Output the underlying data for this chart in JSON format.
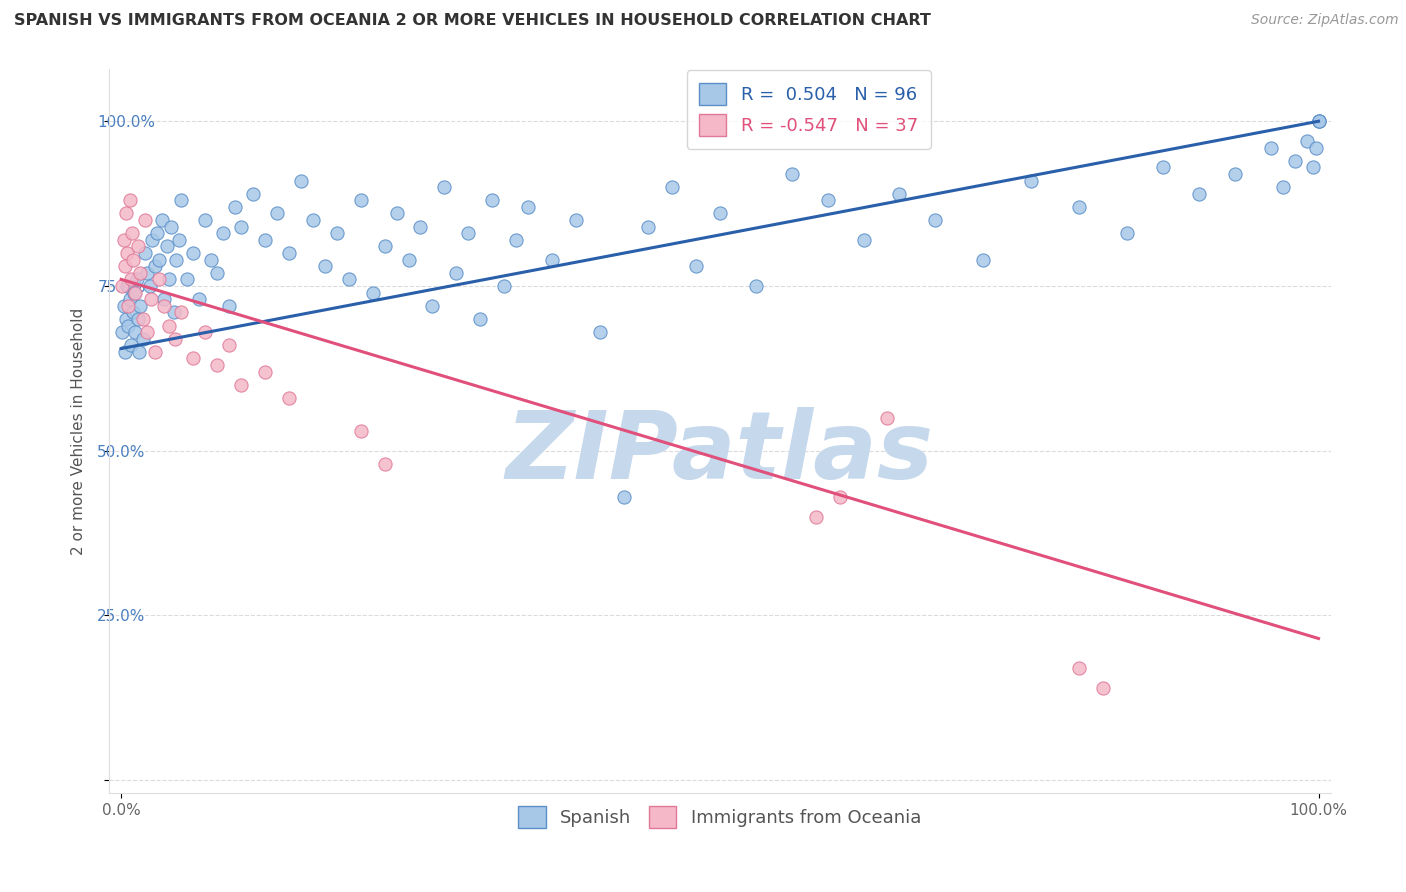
{
  "title": "SPANISH VS IMMIGRANTS FROM OCEANIA 2 OR MORE VEHICLES IN HOUSEHOLD CORRELATION CHART",
  "source": "Source: ZipAtlas.com",
  "ylabel": "2 or more Vehicles in Household",
  "yticks": [
    0.0,
    0.25,
    0.5,
    0.75,
    1.0
  ],
  "ytick_labels": [
    "",
    "25.0%",
    "50.0%",
    "75.0%",
    "100.0%"
  ],
  "xlim": [
    -0.01,
    1.01
  ],
  "ylim": [
    -0.02,
    1.08
  ],
  "blue_x": [
    0.001,
    0.002,
    0.003,
    0.004,
    0.005,
    0.006,
    0.007,
    0.008,
    0.01,
    0.011,
    0.012,
    0.013,
    0.014,
    0.015,
    0.016,
    0.018,
    0.02,
    0.022,
    0.024,
    0.026,
    0.028,
    0.03,
    0.032,
    0.034,
    0.036,
    0.038,
    0.04,
    0.042,
    0.044,
    0.046,
    0.048,
    0.05,
    0.055,
    0.06,
    0.065,
    0.07,
    0.075,
    0.08,
    0.085,
    0.09,
    0.095,
    0.1,
    0.11,
    0.12,
    0.13,
    0.14,
    0.15,
    0.16,
    0.17,
    0.18,
    0.19,
    0.2,
    0.21,
    0.22,
    0.23,
    0.24,
    0.25,
    0.26,
    0.27,
    0.28,
    0.29,
    0.3,
    0.31,
    0.32,
    0.33,
    0.34,
    0.36,
    0.38,
    0.4,
    0.42,
    0.44,
    0.46,
    0.48,
    0.5,
    0.53,
    0.56,
    0.59,
    0.62,
    0.65,
    0.68,
    0.72,
    0.76,
    0.8,
    0.84,
    0.87,
    0.9,
    0.93,
    0.96,
    0.97,
    0.98,
    0.99,
    0.995,
    0.998,
    1.0,
    1.0,
    1.0
  ],
  "blue_y": [
    0.68,
    0.72,
    0.65,
    0.7,
    0.75,
    0.69,
    0.73,
    0.66,
    0.71,
    0.74,
    0.68,
    0.76,
    0.7,
    0.65,
    0.72,
    0.67,
    0.8,
    0.77,
    0.75,
    0.82,
    0.78,
    0.83,
    0.79,
    0.85,
    0.73,
    0.81,
    0.76,
    0.84,
    0.71,
    0.79,
    0.82,
    0.88,
    0.76,
    0.8,
    0.73,
    0.85,
    0.79,
    0.77,
    0.83,
    0.72,
    0.87,
    0.84,
    0.89,
    0.82,
    0.86,
    0.8,
    0.91,
    0.85,
    0.78,
    0.83,
    0.76,
    0.88,
    0.74,
    0.81,
    0.86,
    0.79,
    0.84,
    0.72,
    0.9,
    0.77,
    0.83,
    0.7,
    0.88,
    0.75,
    0.82,
    0.87,
    0.79,
    0.85,
    0.68,
    0.43,
    0.84,
    0.9,
    0.78,
    0.86,
    0.75,
    0.92,
    0.88,
    0.82,
    0.89,
    0.85,
    0.79,
    0.91,
    0.87,
    0.83,
    0.93,
    0.89,
    0.92,
    0.96,
    0.9,
    0.94,
    0.97,
    0.93,
    0.96,
    1.0,
    1.0,
    1.0
  ],
  "pink_x": [
    0.001,
    0.002,
    0.003,
    0.004,
    0.005,
    0.006,
    0.007,
    0.008,
    0.009,
    0.01,
    0.012,
    0.014,
    0.016,
    0.018,
    0.02,
    0.022,
    0.025,
    0.028,
    0.032,
    0.036,
    0.04,
    0.045,
    0.05,
    0.06,
    0.07,
    0.08,
    0.09,
    0.1,
    0.12,
    0.14,
    0.2,
    0.22,
    0.58,
    0.6,
    0.64,
    0.8,
    0.82
  ],
  "pink_y": [
    0.75,
    0.82,
    0.78,
    0.86,
    0.8,
    0.72,
    0.88,
    0.76,
    0.83,
    0.79,
    0.74,
    0.81,
    0.77,
    0.7,
    0.85,
    0.68,
    0.73,
    0.65,
    0.76,
    0.72,
    0.69,
    0.67,
    0.71,
    0.64,
    0.68,
    0.63,
    0.66,
    0.6,
    0.62,
    0.58,
    0.53,
    0.48,
    0.4,
    0.43,
    0.55,
    0.17,
    0.14
  ],
  "blue_trend_x": [
    0.0,
    1.0
  ],
  "blue_trend_y": [
    0.655,
    1.0
  ],
  "pink_trend_x": [
    0.0,
    1.0
  ],
  "pink_trend_y": [
    0.76,
    0.215
  ],
  "blue_color": "#a8c8e8",
  "blue_edge": "#5a8fc8",
  "pink_color": "#f4b8c8",
  "pink_edge": "#e07898",
  "blue_trend_color": "#2a5faa",
  "pink_trend_color": "#e0507a",
  "marker_size": 90,
  "trend_linewidth": 2.2,
  "watermark": "ZIPatlas",
  "watermark_color": "#c5d8ec",
  "title_fontsize": 11.5,
  "legend_fontsize": 13,
  "tick_fontsize": 11,
  "source_fontsize": 10,
  "background_color": "#ffffff",
  "grid_color": "#cccccc",
  "grid_alpha": 0.7,
  "blue_R": "0.504",
  "blue_N": "96",
  "pink_R": "-0.547",
  "pink_N": "37"
}
